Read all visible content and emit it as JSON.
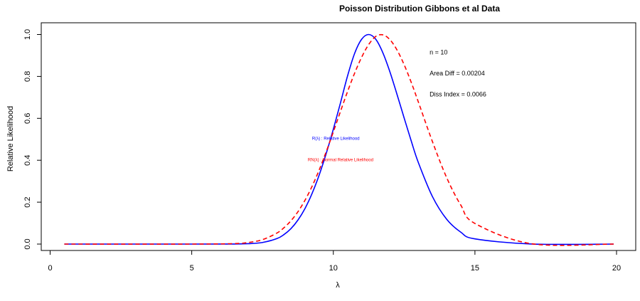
{
  "chart_data": {
    "type": "line",
    "title": "Poisson Distribution Gibbons et al Data",
    "xlabel": "λ",
    "ylabel": "Relative Likelihood",
    "xlim": [
      0,
      20
    ],
    "ylim": [
      0,
      1.0
    ],
    "x_ticks": [
      "0",
      "5",
      "10",
      "15",
      "20"
    ],
    "y_ticks": [
      "0.0",
      "0.2",
      "0.4",
      "0.6",
      "0.8",
      "1.0"
    ],
    "grid": false,
    "x": [
      0.5,
      5.0,
      6.5,
      7.0,
      7.5,
      8.0,
      8.25,
      8.5,
      8.75,
      9.0,
      9.25,
      9.5,
      9.75,
      10.0,
      10.25,
      10.5,
      10.75,
      11.0,
      11.25,
      11.5,
      11.75,
      12.0,
      12.25,
      12.5,
      12.75,
      13.0,
      13.5,
      14.0,
      14.5,
      15.0,
      17.0,
      19.9
    ],
    "series": [
      {
        "name": "R(λ) : Relative Likelihood",
        "color": "#0000ff",
        "style": "solid",
        "values": [
          0.0,
          0.0,
          0.0003,
          0.0019,
          0.0077,
          0.0257,
          0.0447,
          0.0732,
          0.1146,
          0.17,
          0.2416,
          0.3295,
          0.4329,
          0.5482,
          0.6725,
          0.8014,
          0.9092,
          0.9775,
          1.0,
          0.9769,
          0.9124,
          0.821,
          0.7136,
          0.6019,
          0.4924,
          0.3896,
          0.2265,
          0.1189,
          0.0568,
          0.0248,
          0.0003,
          0.0
        ]
      },
      {
        "name": "RN(λ) : Normal Relative Likelihood",
        "color": "#ff0000",
        "style": "dashed",
        "values": [
          0.0,
          0.0,
          0.0023,
          0.0075,
          0.0212,
          0.052,
          0.0771,
          0.1107,
          0.1544,
          0.2093,
          0.2758,
          0.3537,
          0.4412,
          0.5353,
          0.6321,
          0.727,
          0.8149,
          0.8917,
          0.9527,
          0.9909,
          0.9985,
          0.9753,
          0.9257,
          0.8561,
          0.7719,
          0.6786,
          0.4887,
          0.3175,
          0.1861,
          0.0984,
          0.0016,
          0.0
        ]
      }
    ],
    "annotations": [
      {
        "text": "n =  10",
        "x": 13.4,
        "y": 0.905
      },
      {
        "text": "Area Diff =  0.00204",
        "x": 13.4,
        "y": 0.805
      },
      {
        "text": "Diss Index =  0.0066",
        "x": 13.4,
        "y": 0.705
      }
    ],
    "legend_position": "center",
    "legend": [
      {
        "text": "R(λ) : Relative Likelihood",
        "color": "#0000ff",
        "x": 9.25,
        "y": 0.497
      },
      {
        "text": "RN(λ) : Normal Relative Likelihood",
        "color": "#ff0000",
        "x": 9.1,
        "y": 0.395
      }
    ]
  }
}
